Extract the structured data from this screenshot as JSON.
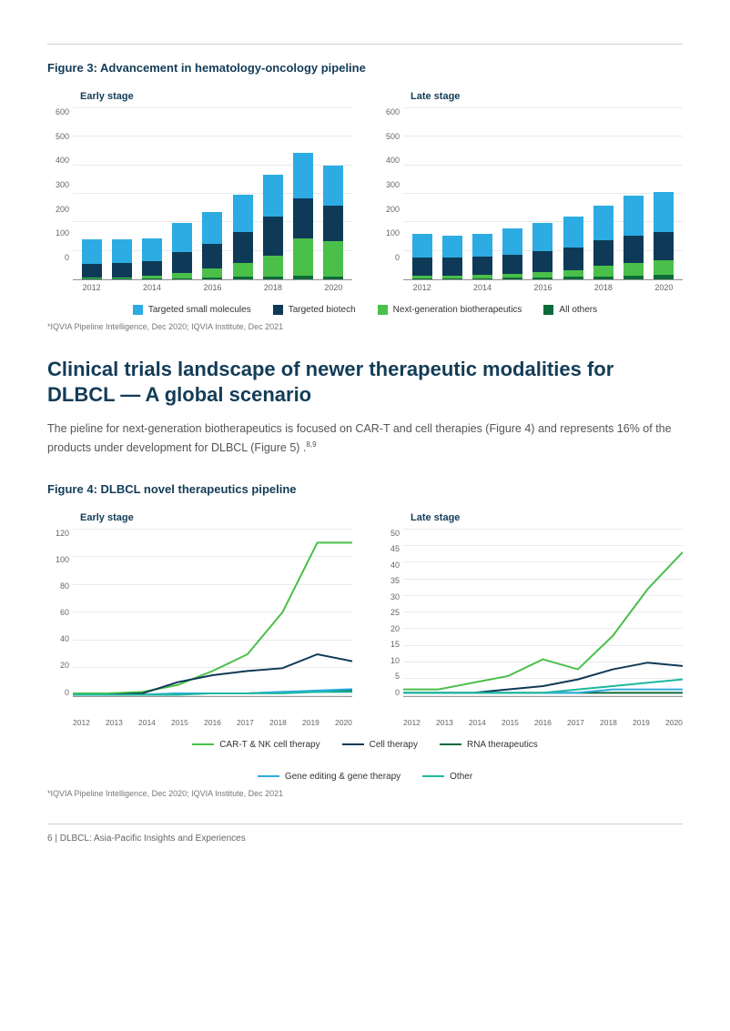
{
  "figure3": {
    "title": "Figure 3: Advancement in hematology-oncology pipeline",
    "subtitles": {
      "left": "Early stage",
      "right": "Late stage"
    },
    "colors": {
      "tsm": "#2cace2",
      "tb": "#0f3a57",
      "ngb": "#4ac04a",
      "ao": "#0d6a3a",
      "grid": "#eaeaea",
      "axis_text": "#666666"
    },
    "legend": [
      {
        "label": "Targeted small molecules",
        "key": "tsm"
      },
      {
        "label": "Targeted biotech",
        "key": "tb"
      },
      {
        "label": "Next-generation biotherapeutics",
        "key": "ngb"
      },
      {
        "label": "All others",
        "key": "ao"
      }
    ],
    "early": {
      "ymax": 600,
      "ystep": 100,
      "years": [
        2012,
        2013,
        2014,
        2015,
        2016,
        2017,
        2018,
        2019,
        2020
      ],
      "data": [
        {
          "tsm": 95,
          "tb": 55,
          "ngb": 3,
          "ao": 3
        },
        {
          "tsm": 95,
          "tb": 55,
          "ngb": 4,
          "ao": 3
        },
        {
          "tsm": 90,
          "tb": 55,
          "ngb": 12,
          "ao": 3
        },
        {
          "tsm": 115,
          "tb": 80,
          "ngb": 20,
          "ao": 5
        },
        {
          "tsm": 125,
          "tb": 95,
          "ngb": 35,
          "ao": 8
        },
        {
          "tsm": 145,
          "tb": 120,
          "ngb": 55,
          "ao": 10
        },
        {
          "tsm": 165,
          "tb": 150,
          "ngb": 80,
          "ao": 12
        },
        {
          "tsm": 175,
          "tb": 155,
          "ngb": 145,
          "ao": 15
        },
        {
          "tsm": 155,
          "tb": 140,
          "ngb": 135,
          "ao": 12
        }
      ]
    },
    "late": {
      "ymax": 600,
      "ystep": 100,
      "years": [
        2012,
        2013,
        2014,
        2015,
        2016,
        2017,
        2018,
        2019,
        2020
      ],
      "xlabels": [
        2012,
        "",
        2014,
        "",
        2016,
        "",
        2018,
        "",
        2020
      ],
      "data": [
        {
          "tsm": 90,
          "tb": 70,
          "ngb": 10,
          "ao": 5
        },
        {
          "tsm": 85,
          "tb": 70,
          "ngb": 10,
          "ao": 5
        },
        {
          "tsm": 90,
          "tb": 70,
          "ngb": 12,
          "ao": 5
        },
        {
          "tsm": 100,
          "tb": 75,
          "ngb": 15,
          "ao": 6
        },
        {
          "tsm": 110,
          "tb": 80,
          "ngb": 20,
          "ao": 8
        },
        {
          "tsm": 120,
          "tb": 90,
          "ngb": 25,
          "ao": 10
        },
        {
          "tsm": 135,
          "tb": 100,
          "ngb": 40,
          "ao": 12
        },
        {
          "tsm": 155,
          "tb": 105,
          "ngb": 50,
          "ao": 15
        },
        {
          "tsm": 155,
          "tb": 110,
          "ngb": 55,
          "ao": 18
        }
      ]
    },
    "footnote": "*IQVIA Pipeline Intelligence, Dec 2020; IQVIA Institute, Dec 2021"
  },
  "section": {
    "heading": "Clinical trials landscape of newer therapeutic modalities for DLBCL — A global scenario",
    "body": "The pieline for next-generation biotherapeutics is focused on CAR-T and cell therapies (Figure 4) and represents 16% of the products under development for DLBCL (Figure 5) .",
    "refs": "8,9"
  },
  "figure4": {
    "title": "Figure 4: DLBCL novel therapeutics pipeline",
    "subtitles": {
      "left": "Early stage",
      "right": "Late stage"
    },
    "colors": {
      "cart": "#4ac04a",
      "cell": "#0f3a57",
      "rna": "#0d6a3a",
      "gene": "#2cace2",
      "other": "#1db89d"
    },
    "legend": [
      {
        "label": "CAR-T & NK cell therapy",
        "key": "cart"
      },
      {
        "label": "Cell therapy",
        "key": "cell"
      },
      {
        "label": "RNA therapeutics",
        "key": "rna"
      },
      {
        "label": "Gene editing & gene therapy",
        "key": "gene"
      },
      {
        "label": "Other",
        "key": "other"
      }
    ],
    "years": [
      2012,
      2013,
      2014,
      2015,
      2016,
      2017,
      2018,
      2019,
      2020
    ],
    "early": {
      "ymax": 120,
      "ystep": 20,
      "series": {
        "cart": [
          2,
          2,
          3,
          8,
          18,
          30,
          60,
          110,
          110
        ],
        "cell": [
          1,
          1,
          2,
          10,
          15,
          18,
          20,
          30,
          25
        ],
        "rna": [
          1,
          1,
          1,
          2,
          2,
          2,
          3,
          3,
          4
        ],
        "gene": [
          1,
          1,
          1,
          2,
          2,
          2,
          3,
          4,
          5
        ],
        "other": [
          1,
          1,
          1,
          1,
          2,
          2,
          2,
          3,
          3
        ]
      }
    },
    "late": {
      "ymax": 50,
      "ystep": 5,
      "series": {
        "cart": [
          2,
          2,
          4,
          6,
          11,
          8,
          18,
          32,
          43
        ],
        "cell": [
          1,
          1,
          1,
          2,
          3,
          5,
          8,
          10,
          9
        ],
        "rna": [
          1,
          1,
          1,
          1,
          1,
          1,
          1,
          1,
          1
        ],
        "gene": [
          1,
          1,
          1,
          1,
          1,
          1,
          2,
          2,
          2
        ],
        "other": [
          1,
          1,
          1,
          1,
          1,
          2,
          3,
          4,
          5
        ]
      }
    },
    "footnote": "*IQVIA Pipeline Intelligence, Dec 2020; IQVIA Institute, Dec 2021"
  },
  "footer": "6  |  DLBCL: Asia-Pacific Insights and Experiences"
}
